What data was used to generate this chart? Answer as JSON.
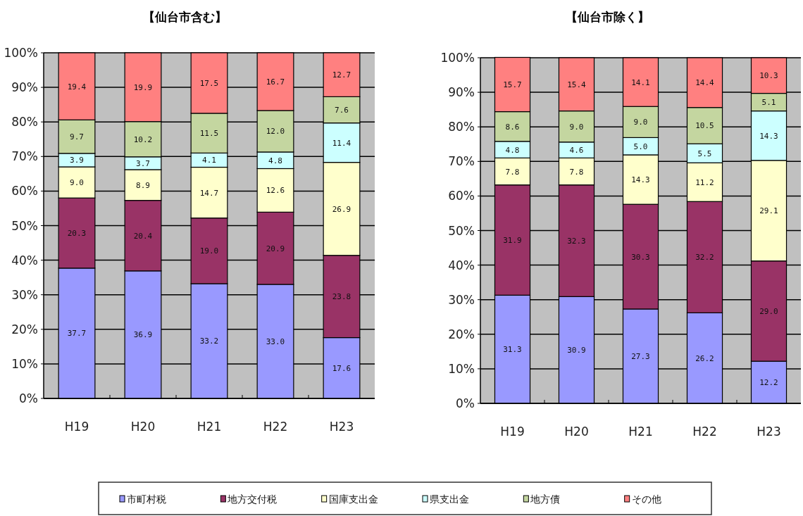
{
  "chart_data": [
    {
      "type": "bar",
      "title": "【仙台市含む】",
      "stacked": true,
      "grid": "y",
      "categories": [
        "H19",
        "H20",
        "H21",
        "H22",
        "H23"
      ],
      "ylim": [
        0,
        100
      ],
      "yticks": [
        {
          "value": 0,
          "label": "0%"
        },
        {
          "value": 10,
          "label": "10%"
        },
        {
          "value": 20,
          "label": "20%"
        },
        {
          "value": 30,
          "label": "30%"
        },
        {
          "value": 40,
          "label": "40%"
        },
        {
          "value": 50,
          "label": "50%"
        },
        {
          "value": 60,
          "label": "60%"
        },
        {
          "value": 70,
          "label": "70%"
        },
        {
          "value": 80,
          "label": "80%"
        },
        {
          "value": 90,
          "label": "90%"
        },
        {
          "value": 100,
          "label": "100%"
        }
      ],
      "series": [
        {
          "color": "#9999ff",
          "values": [
            37.7,
            36.9,
            33.2,
            33.0,
            17.6
          ],
          "value_labels": [
            "37.7",
            "36.9",
            "33.2",
            "33.0",
            "17.6"
          ]
        },
        {
          "color": "#993366",
          "values": [
            20.3,
            20.4,
            19.0,
            20.9,
            23.8
          ],
          "value_labels": [
            "20.3",
            "20.4",
            "19.0",
            "20.9",
            "23.8"
          ]
        },
        {
          "color": "#ffffcc",
          "values": [
            9.0,
            8.9,
            14.7,
            12.6,
            26.9
          ],
          "value_labels": [
            "9.0",
            "8.9",
            "14.7",
            "12.6",
            "26.9"
          ]
        },
        {
          "color": "#ccffff",
          "values": [
            3.9,
            3.7,
            4.1,
            4.8,
            11.4
          ],
          "value_labels": [
            "3.9",
            "3.7",
            "4.1",
            "4.8",
            "11.4"
          ]
        },
        {
          "color": "#c4d6a0",
          "values": [
            9.7,
            10.2,
            11.5,
            12.0,
            7.6
          ],
          "value_labels": [
            "9.7",
            "10.2",
            "11.5",
            "12.0",
            "7.6"
          ]
        },
        {
          "color": "#ff8080",
          "values": [
            19.4,
            19.9,
            17.5,
            16.7,
            12.7
          ],
          "value_labels": [
            "19.4",
            "19.9",
            "17.5",
            "16.7",
            "12.7"
          ]
        }
      ]
    },
    {
      "type": "bar",
      "title": "【仙台市除く】",
      "stacked": true,
      "grid": "y",
      "legend": "bottom",
      "categories": [
        "H19",
        "H20",
        "H21",
        "H22",
        "H23"
      ],
      "ylim": [
        0,
        100
      ],
      "yticks": [
        {
          "value": 0,
          "label": "0%"
        },
        {
          "value": 10,
          "label": "10%"
        },
        {
          "value": 20,
          "label": "20%"
        },
        {
          "value": 30,
          "label": "30%"
        },
        {
          "value": 40,
          "label": "40%"
        },
        {
          "value": 50,
          "label": "50%"
        },
        {
          "value": 60,
          "label": "60%"
        },
        {
          "value": 70,
          "label": "70%"
        },
        {
          "value": 80,
          "label": "80%"
        },
        {
          "value": 90,
          "label": "90%"
        },
        {
          "value": 100,
          "label": "100%"
        }
      ],
      "series": [
        {
          "name": "市町村税",
          "color": "#9999ff",
          "values": [
            31.3,
            30.9,
            27.3,
            26.2,
            12.2
          ],
          "value_labels": [
            "31.3",
            "30.9",
            "27.3",
            "26.2",
            "12.2"
          ]
        },
        {
          "name": "地方交付税",
          "color": "#993366",
          "values": [
            31.9,
            32.3,
            30.3,
            32.2,
            29.0
          ],
          "value_labels": [
            "31.9",
            "32.3",
            "30.3",
            "32.2",
            "29.0"
          ]
        },
        {
          "name": "国庫支出金",
          "color": "#ffffcc",
          "values": [
            7.8,
            7.8,
            14.3,
            11.2,
            29.1
          ],
          "value_labels": [
            "7.8",
            "7.8",
            "14.3",
            "11.2",
            "29.1"
          ]
        },
        {
          "name": "県支出金",
          "color": "#ccffff",
          "values": [
            4.8,
            4.6,
            5.0,
            5.5,
            14.3
          ],
          "value_labels": [
            "4.8",
            "4.6",
            "5.0",
            "5.5",
            "14.3"
          ]
        },
        {
          "name": "地方債",
          "color": "#c4d6a0",
          "values": [
            8.6,
            9.0,
            9.0,
            10.5,
            5.1
          ],
          "value_labels": [
            "8.6",
            "9.0",
            "9.0",
            "10.5",
            "5.1"
          ]
        },
        {
          "name": "その他",
          "color": "#ff8080",
          "values": [
            15.7,
            15.4,
            14.1,
            14.4,
            10.3
          ],
          "value_labels": [
            "15.7",
            "15.4",
            "14.1",
            "14.4",
            "10.3"
          ]
        }
      ]
    }
  ]
}
